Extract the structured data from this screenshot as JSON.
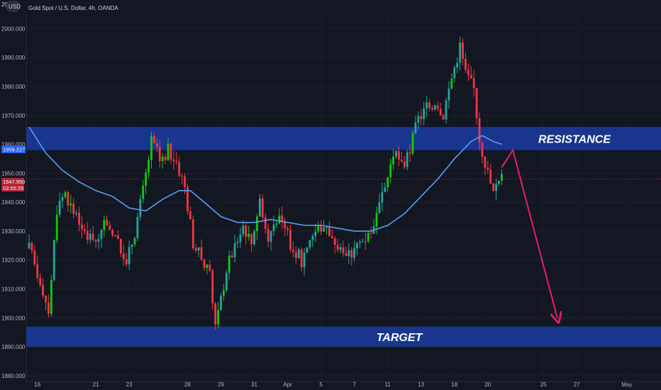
{
  "header": {
    "title": "Gold Spot / U.S. Dollar, 4h, OANDA",
    "currency_badge": "USD",
    "top_label": "20"
  },
  "colors": {
    "background": "#131722",
    "bull": "#26a69a",
    "bull_bright": "#16c70f",
    "bear": "#f23645",
    "ma_line": "#5b9cf6",
    "zone": "#1a3a9c",
    "arrow": "#e91e63",
    "price_line": "#b22833",
    "axis_text": "#b2b5be"
  },
  "badges": {
    "ma_value": "1959.227",
    "price_value": "1947.950",
    "countdown": "03:55:29"
  },
  "chart_data": {
    "type": "candlestick",
    "symbol": "Gold Spot / U.S. Dollar",
    "timeframe": "4h",
    "ylim": [
      1878,
      2005
    ],
    "y_ticks": [
      1880,
      1890,
      1900,
      1910,
      1920,
      1930,
      1940,
      1950,
      1960,
      1970,
      1980,
      1990,
      2000
    ],
    "y_tick_labels": [
      "1880.000",
      "1890.000",
      "1900.000",
      "1910.000",
      "1920.000",
      "1930.000",
      "1940.000",
      "1950.000",
      "1960.000",
      "1970.000",
      "1980.000",
      "1990.000",
      "2000.000"
    ],
    "x_ticks": [
      {
        "label": "16",
        "idx": 3
      },
      {
        "label": "21",
        "idx": 24
      },
      {
        "label": "23",
        "idx": 36
      },
      {
        "label": "28",
        "idx": 57
      },
      {
        "label": "29",
        "idx": 69
      },
      {
        "label": "31",
        "idx": 81
      },
      {
        "label": "Apr",
        "idx": 93
      },
      {
        "label": "5",
        "idx": 105
      },
      {
        "label": "7",
        "idx": 117
      },
      {
        "label": "11",
        "idx": 129
      },
      {
        "label": "13",
        "idx": 141
      },
      {
        "label": "18",
        "idx": 153
      },
      {
        "label": "20",
        "idx": 165
      },
      {
        "label": "25",
        "idx": 185
      },
      {
        "label": "27",
        "idx": 197
      },
      {
        "label": "May",
        "idx": 215
      }
    ],
    "zones": [
      {
        "label": "RESISTANCE",
        "low": 1958,
        "high": 1966
      },
      {
        "label": "TARGET",
        "low": 1890,
        "high": 1897
      }
    ],
    "current_price": 1947.95,
    "ma_value": 1959.227,
    "arrow": [
      {
        "idx": 170,
        "price": 1952
      },
      {
        "idx": 174,
        "price": 1958
      },
      {
        "idx": 190,
        "price": 1900
      }
    ],
    "waypoints": [
      [
        0,
        1924
      ],
      [
        4,
        1913
      ],
      [
        7,
        1903
      ],
      [
        10,
        1938
      ],
      [
        13,
        1944
      ],
      [
        16,
        1935
      ],
      [
        20,
        1931
      ],
      [
        24,
        1924
      ],
      [
        28,
        1934
      ],
      [
        32,
        1925
      ],
      [
        35,
        1919
      ],
      [
        38,
        1930
      ],
      [
        41,
        1944
      ],
      [
        44,
        1961
      ],
      [
        47,
        1955
      ],
      [
        50,
        1958
      ],
      [
        53,
        1954
      ],
      [
        56,
        1945
      ],
      [
        59,
        1926
      ],
      [
        62,
        1920
      ],
      [
        65,
        1914
      ],
      [
        67,
        1898
      ],
      [
        68,
        1901
      ],
      [
        71,
        1917
      ],
      [
        74,
        1925
      ],
      [
        77,
        1932
      ],
      [
        80,
        1926
      ],
      [
        83,
        1941
      ],
      [
        86,
        1928
      ],
      [
        89,
        1935
      ],
      [
        92,
        1930
      ],
      [
        95,
        1924
      ],
      [
        98,
        1920
      ],
      [
        101,
        1928
      ],
      [
        104,
        1931
      ],
      [
        107,
        1932
      ],
      [
        110,
        1926
      ],
      [
        113,
        1920
      ],
      [
        116,
        1922
      ],
      [
        119,
        1926
      ],
      [
        122,
        1929
      ],
      [
        125,
        1934
      ],
      [
        128,
        1945
      ],
      [
        131,
        1957
      ],
      [
        134,
        1952
      ],
      [
        137,
        1958
      ],
      [
        140,
        1969
      ],
      [
        143,
        1972
      ],
      [
        146,
        1975
      ],
      [
        149,
        1971
      ],
      [
        152,
        1983
      ],
      [
        155,
        1994
      ],
      [
        157,
        1984
      ],
      [
        160,
        1979
      ],
      [
        162,
        1962
      ],
      [
        165,
        1950
      ],
      [
        167,
        1943
      ],
      [
        169,
        1947
      ],
      [
        170,
        1948
      ]
    ],
    "ma": [
      [
        0,
        1966
      ],
      [
        6,
        1957
      ],
      [
        12,
        1951
      ],
      [
        18,
        1947
      ],
      [
        24,
        1944
      ],
      [
        30,
        1942
      ],
      [
        36,
        1938
      ],
      [
        42,
        1937
      ],
      [
        48,
        1941
      ],
      [
        54,
        1944
      ],
      [
        58,
        1944
      ],
      [
        63,
        1940
      ],
      [
        69,
        1935
      ],
      [
        75,
        1933
      ],
      [
        81,
        1933
      ],
      [
        87,
        1934
      ],
      [
        93,
        1933
      ],
      [
        99,
        1932
      ],
      [
        105,
        1932
      ],
      [
        111,
        1931
      ],
      [
        117,
        1930
      ],
      [
        123,
        1930
      ],
      [
        129,
        1932
      ],
      [
        135,
        1936
      ],
      [
        141,
        1942
      ],
      [
        147,
        1948
      ],
      [
        153,
        1955
      ],
      [
        159,
        1961
      ],
      [
        163,
        1963
      ],
      [
        167,
        1961
      ],
      [
        170,
        1960
      ]
    ]
  }
}
